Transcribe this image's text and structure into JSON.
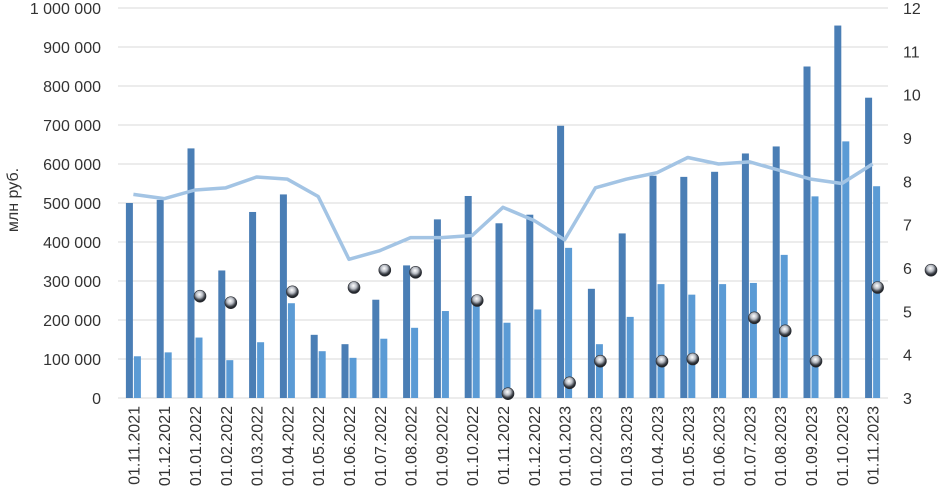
{
  "chart_data": {
    "type": "bar",
    "ylabel": "млн руб.",
    "ylim": [
      0,
      1000000
    ],
    "y2lim": [
      3,
      12
    ],
    "categories": [
      "01.11.2021",
      "01.12.2021",
      "01.01.2022",
      "01.02.2022",
      "01.03.2022",
      "01.04.2022",
      "01.05.2022",
      "01.06.2022",
      "01.07.2022",
      "01.08.2022",
      "01.09.2022",
      "01.10.2022",
      "01.11.2022",
      "01.12.2022",
      "01.01.2023",
      "01.02.2023",
      "01.03.2023",
      "01.04.2023",
      "01.05.2023",
      "01.06.2023",
      "01.07.2023",
      "01.08.2023",
      "01.09.2023",
      "01.10.2023",
      "01.11.2023"
    ],
    "y_ticks": [
      "0",
      "100 000",
      "200 000",
      "300 000",
      "400 000",
      "500 000",
      "600 000",
      "700 000",
      "800 000",
      "900 000",
      "1 000 000"
    ],
    "y2_ticks": [
      "3",
      "4",
      "5",
      "6",
      "7",
      "8",
      "9",
      "10",
      "11",
      "12"
    ],
    "series": [
      {
        "axis": "left",
        "kind": "bar",
        "color": "#4a7eb5",
        "values": [
          500000,
          508000,
          640000,
          327000,
          477000,
          522000,
          162000,
          138000,
          252000,
          340000,
          458000,
          518000,
          448000,
          470000,
          698000,
          280000,
          422000,
          570000,
          567000,
          580000,
          627000,
          645000,
          850000,
          955000,
          770000
        ]
      },
      {
        "axis": "left",
        "kind": "bar",
        "color": "#5b9bd5",
        "values": [
          107000,
          117000,
          155000,
          97000,
          143000,
          243000,
          120000,
          103000,
          152000,
          180000,
          223000,
          248000,
          193000,
          227000,
          385000,
          138000,
          208000,
          292000,
          265000,
          292000,
          295000,
          367000,
          517000,
          658000,
          543000
        ]
      },
      {
        "axis": "right",
        "kind": "line",
        "color": "#a3c4e4",
        "values": [
          7.7,
          7.6,
          7.8,
          7.85,
          8.1,
          8.05,
          7.65,
          6.2,
          6.4,
          6.7,
          6.7,
          6.75,
          7.4,
          7.1,
          6.65,
          7.85,
          8.05,
          8.2,
          8.55,
          8.4,
          8.45,
          8.25,
          8.05,
          7.95,
          8.4
        ]
      },
      {
        "axis": "right",
        "kind": "marker",
        "values": [
          null,
          null,
          5.35,
          5.2,
          null,
          5.45,
          null,
          5.55,
          5.95,
          5.9,
          null,
          5.25,
          3.1,
          null,
          3.35,
          3.85,
          null,
          3.85,
          3.9,
          null,
          4.85,
          4.55,
          3.85,
          null,
          5.55
        ]
      }
    ]
  }
}
